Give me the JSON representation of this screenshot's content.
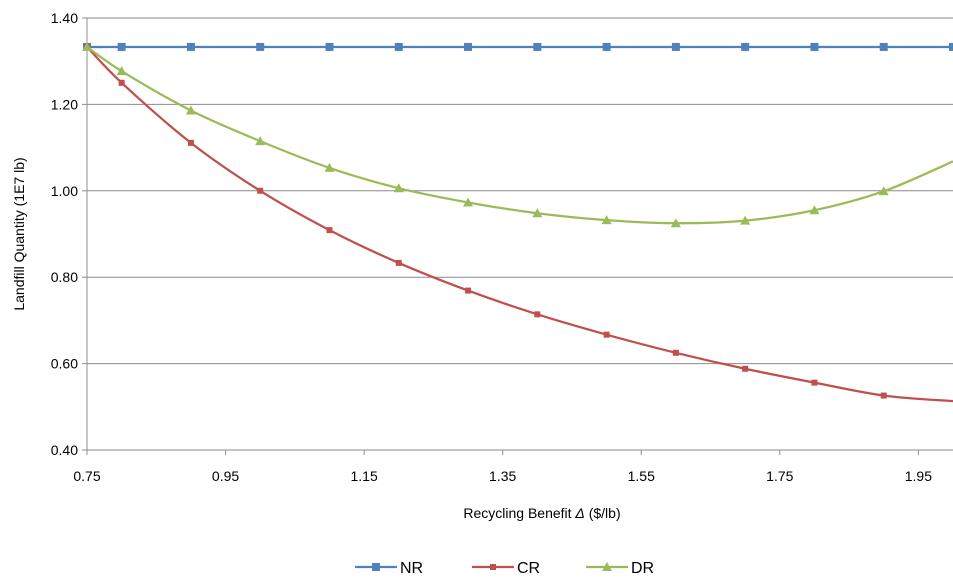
{
  "chart_data": {
    "type": "line",
    "title": "",
    "xlabel_prefix": "Recycling Benefit ",
    "xlabel_symbol": "Δ",
    "xlabel_suffix": " ($/lb)",
    "ylabel": "Landfill Quantity (1E7 lb)",
    "xlim": [
      0.75,
      2.0
    ],
    "ylim": [
      0.4,
      1.4
    ],
    "x_ticks": [
      "0.75",
      "0.95",
      "1.15",
      "1.35",
      "1.55",
      "1.75",
      "1.95"
    ],
    "y_ticks": [
      "0.40",
      "0.60",
      "0.80",
      "1.00",
      "1.20",
      "1.40"
    ],
    "grid": "horizontal",
    "legend": "bottom",
    "series": [
      {
        "name": "NR",
        "color": "#4f81bd",
        "marker": "square",
        "x": [
          0.75,
          0.8,
          0.9,
          1.0,
          1.1,
          1.2,
          1.3,
          1.4,
          1.5,
          1.6,
          1.7,
          1.8,
          1.9,
          2.0
        ],
        "values": [
          1.333,
          1.333,
          1.333,
          1.333,
          1.333,
          1.333,
          1.333,
          1.333,
          1.333,
          1.333,
          1.333,
          1.333,
          1.333,
          1.333
        ],
        "marker_x": [
          0.75,
          0.8,
          0.9,
          1.0,
          1.1,
          1.2,
          1.3,
          1.4,
          1.5,
          1.6,
          1.7,
          1.8,
          1.9,
          2.0
        ]
      },
      {
        "name": "CR",
        "color": "#c0504d",
        "marker": "square-small",
        "x": [
          0.75,
          0.8,
          0.9,
          1.0,
          1.1,
          1.2,
          1.3,
          1.4,
          1.5,
          1.6,
          1.7,
          1.8,
          1.9,
          2.0
        ],
        "values": [
          1.333,
          1.25,
          1.111,
          1.0,
          0.909,
          0.833,
          0.769,
          0.714,
          0.667,
          0.625,
          0.588,
          0.556,
          0.526,
          0.513
        ],
        "marker_x": [
          0.75,
          0.8,
          0.9,
          1.0,
          1.1,
          1.2,
          1.3,
          1.4,
          1.5,
          1.6,
          1.7,
          1.8,
          1.9
        ]
      },
      {
        "name": "DR",
        "color": "#9bbb59",
        "marker": "triangle",
        "x": [
          0.75,
          0.8,
          0.9,
          1.0,
          1.1,
          1.2,
          1.3,
          1.4,
          1.5,
          1.6,
          1.7,
          1.8,
          1.9,
          2.0
        ],
        "values": [
          1.333,
          1.277,
          1.186,
          1.115,
          1.053,
          1.006,
          0.973,
          0.948,
          0.932,
          0.925,
          0.931,
          0.955,
          0.999,
          1.068
        ],
        "marker_x": [
          0.75,
          0.8,
          0.9,
          1.0,
          1.1,
          1.2,
          1.3,
          1.4,
          1.5,
          1.6,
          1.7,
          1.8,
          1.9
        ]
      }
    ]
  }
}
